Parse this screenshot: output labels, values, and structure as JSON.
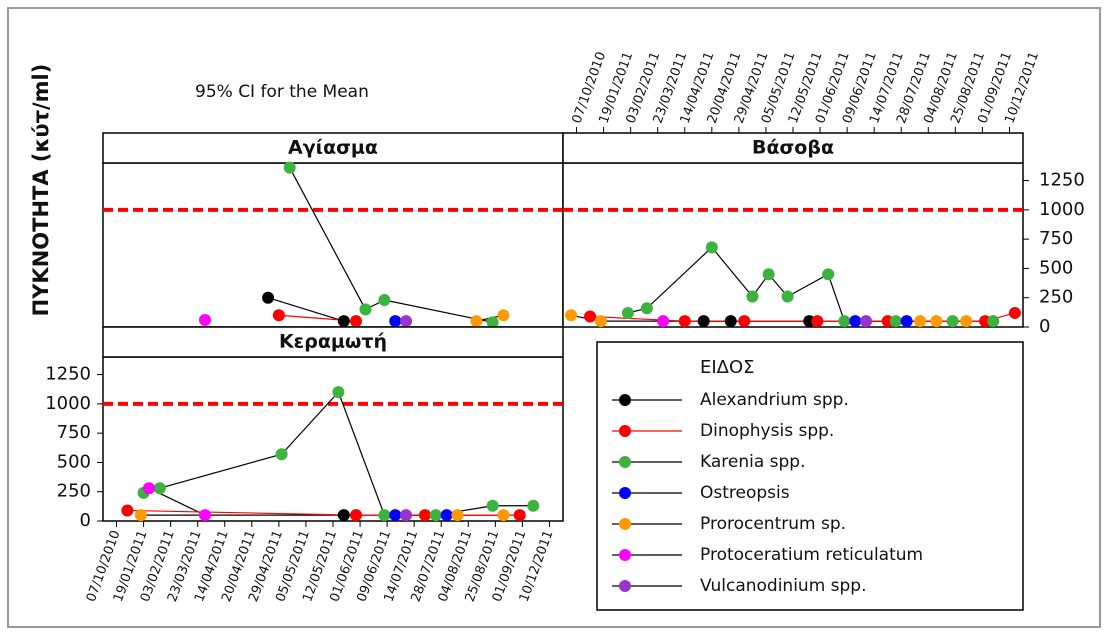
{
  "chart_data": {
    "type": "line",
    "annotation": "95% CI for the Mean",
    "ylabel": "ΠΥΚΝΟΤΗΤΑ (κύτ/ml)",
    "legend_title": "ΕΙΔΟΣ",
    "reference_line": 1000,
    "ylim": [
      0,
      1400
    ],
    "yticks": [
      0,
      250,
      500,
      750,
      1000,
      1250
    ],
    "xlim": [
      -0.5,
      16.5
    ],
    "xticks": [
      {
        "value": 0,
        "label": "07/10/2010"
      },
      {
        "value": 1,
        "label": "19/01/2011"
      },
      {
        "value": 2,
        "label": "03/02/2011"
      },
      {
        "value": 3,
        "label": "23/03/2011"
      },
      {
        "value": 4,
        "label": "14/04/2011"
      },
      {
        "value": 5,
        "label": "20/04/2011"
      },
      {
        "value": 6,
        "label": "29/04/2011"
      },
      {
        "value": 7,
        "label": "05/05/2011"
      },
      {
        "value": 8,
        "label": "12/05/2011"
      },
      {
        "value": 9,
        "label": "01/06/2011"
      },
      {
        "value": 10,
        "label": "09/06/2011"
      },
      {
        "value": 11,
        "label": "14/07/2011"
      },
      {
        "value": 12,
        "label": "28/07/2011"
      },
      {
        "value": 13,
        "label": "04/08/2011"
      },
      {
        "value": 14,
        "label": "25/08/2011"
      },
      {
        "value": 15,
        "label": "01/09/2011"
      },
      {
        "value": 16,
        "label": "10/12/2011"
      }
    ],
    "series": [
      {
        "name": "Alexandrium spp.",
        "color": "#000000"
      },
      {
        "name": "Dinophysis spp.",
        "color": "#ff0000"
      },
      {
        "name": "Karenia spp.",
        "color": "#3cb33c"
      },
      {
        "name": "Ostreopsis",
        "color": "#0000ff"
      },
      {
        "name": "Prorocentrum sp.",
        "color": "#ff9900"
      },
      {
        "name": "Protoceratium reticulatum",
        "color": "#ff00ff"
      },
      {
        "name": "Vulcanodinium spp.",
        "color": "#9933cc"
      }
    ],
    "panels": [
      {
        "title": "Αγίασμα",
        "series": [
          {
            "x": [
              5.6,
              8.4
            ],
            "values": [
              250,
              50
            ]
          },
          {
            "x": [
              6.0,
              8.85
            ],
            "values": [
              100,
              50
            ]
          },
          {
            "x": [
              6.4,
              9.2,
              9.9,
              13.9
            ],
            "values": [
              1360,
              150,
              230,
              40
            ]
          },
          {
            "x": [
              10.3
            ],
            "values": [
              50
            ]
          },
          {
            "x": [
              13.3,
              14.3
            ],
            "values": [
              50,
              100
            ]
          },
          {
            "x": [
              3.27
            ],
            "values": [
              60
            ]
          },
          {
            "x": [
              10.7
            ],
            "values": [
              50
            ]
          }
        ]
      },
      {
        "title": "Βάσοβα",
        "series": [
          {
            "x": [
              4.7,
              5.7,
              8.6
            ],
            "values": [
              50,
              50,
              50
            ]
          },
          {
            "x": [
              0.5,
              4.0,
              6.2,
              8.9,
              11.5,
              15.1,
              16.2
            ],
            "values": [
              90,
              50,
              50,
              50,
              50,
              50,
              120
            ]
          },
          {
            "x": [
              1.9,
              2.6,
              5.0,
              6.5,
              7.1,
              7.8,
              9.3,
              9.9,
              11.8,
              13.9,
              15.4
            ],
            "values": [
              120,
              160,
              680,
              260,
              450,
              260,
              450,
              50,
              50,
              50,
              50
            ]
          },
          {
            "x": [
              10.3,
              12.2
            ],
            "values": [
              50,
              50
            ]
          },
          {
            "x": [
              -0.2,
              0.9,
              12.7,
              13.3,
              14.4
            ],
            "values": [
              100,
              50,
              50,
              50,
              50
            ]
          },
          {
            "x": [
              3.2
            ],
            "values": [
              50
            ]
          },
          {
            "x": [
              10.7
            ],
            "values": [
              50
            ]
          }
        ]
      },
      {
        "title": "Κεραμωτή",
        "series": [
          {
            "x": [
              8.4
            ],
            "values": [
              50
            ]
          },
          {
            "x": [
              0.4,
              8.85,
              11.4,
              14.9
            ],
            "values": [
              90,
              50,
              50,
              50
            ]
          },
          {
            "x": [
              1.0,
              1.6,
              6.1,
              8.2,
              9.9,
              11.8,
              13.9,
              15.4
            ],
            "values": [
              240,
              280,
              570,
              1100,
              50,
              50,
              130,
              130
            ]
          },
          {
            "x": [
              10.3,
              12.2
            ],
            "values": [
              50,
              50
            ]
          },
          {
            "x": [
              0.9,
              12.6,
              14.3
            ],
            "values": [
              50,
              50,
              50
            ]
          },
          {
            "x": [
              1.2,
              3.27
            ],
            "values": [
              280,
              50
            ]
          },
          {
            "x": [
              10.7
            ],
            "values": [
              50
            ]
          }
        ]
      }
    ]
  }
}
